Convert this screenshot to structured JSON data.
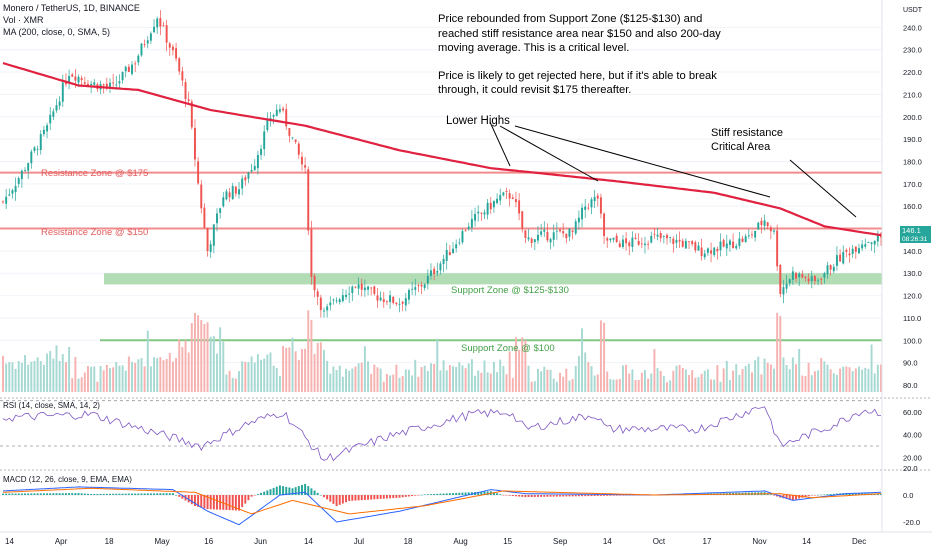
{
  "header": {
    "symbol_line": "Monero / TetherUS, 1D, BINANCE",
    "vol_line": "Vol · XMR",
    "ma_line": "MA (200, close, 0, SMA, 5)"
  },
  "annotations": {
    "note_p1": "Price rebounded from Support Zone ($125-$130) and reached stiff resistance area near $150 and also 200-day moving average. This is a critical level.",
    "note_p2": "Price is likely to get rejected here, but if it's able to break through, it could revisit $175 thereafter.",
    "lower_highs": "Lower Highs",
    "stiff_resistance_1": "Stiff resistance",
    "stiff_resistance_2": "Critical Area"
  },
  "zones": {
    "res175_label": "Resistance Zone @ $175",
    "res150_label": "Resistance Zone @ $150",
    "sup125_label": "Support Zone @ $125-$130",
    "sup100_label": "Support Zone @ $100"
  },
  "panels": {
    "rsi_label": "RSI (14, close, SMA, 14, 2)",
    "macd_label": "MACD (12, 26, close, 9, EMA, EMA)"
  },
  "price_tag": {
    "price": "146.1",
    "countdown": "08:26:31"
  },
  "colors": {
    "up": "#26a69a",
    "down": "#ef5350",
    "ma": "#e0213f",
    "resistance": "#f08c8c",
    "support_zone": "#a5d6a7",
    "support_line": "#81c784",
    "rsi": "#7e57c2",
    "macd": "#2962ff",
    "signal": "#ff6d00"
  },
  "chart_data": [
    {
      "type": "candlestick",
      "x_axis": {
        "ticks": [
          "14",
          "Apr",
          "18",
          "May",
          "16",
          "Jun",
          "14",
          "Jul",
          "18",
          "Aug",
          "15",
          "Sep",
          "14",
          "Oct",
          "17",
          "Nov",
          "14",
          "Dec"
        ]
      },
      "y_axis": {
        "ticks": [
          80.0,
          90.0,
          100.0,
          110.0,
          120.0,
          130.0,
          140.0,
          150.0,
          160.0,
          170.0,
          180.0,
          190.0,
          200.0,
          210.0,
          220.0,
          230.0,
          240.0
        ],
        "unit": "USDT",
        "range": [
          78,
          252
        ]
      },
      "price_keypoints": [
        [
          "2022-03-08",
          162
        ],
        [
          "2022-03-14",
          175
        ],
        [
          "2022-03-22",
          195
        ],
        [
          "2022-03-29",
          220
        ],
        [
          "2022-04-05",
          215
        ],
        [
          "2022-04-12",
          213
        ],
        [
          "2022-04-19",
          225
        ],
        [
          "2022-04-26",
          245
        ],
        [
          "2022-05-02",
          225
        ],
        [
          "2022-05-06",
          205
        ],
        [
          "2022-05-09",
          170
        ],
        [
          "2022-05-12",
          140
        ],
        [
          "2022-05-17",
          165
        ],
        [
          "2022-05-22",
          168
        ],
        [
          "2022-05-27",
          180
        ],
        [
          "2022-06-01",
          200
        ],
        [
          "2022-06-04",
          204
        ],
        [
          "2022-06-08",
          190
        ],
        [
          "2022-06-12",
          175
        ],
        [
          "2022-06-14",
          128
        ],
        [
          "2022-06-18",
          112
        ],
        [
          "2022-06-23",
          120
        ],
        [
          "2022-06-28",
          125
        ],
        [
          "2022-07-04",
          120
        ],
        [
          "2022-07-12",
          117
        ],
        [
          "2022-07-20",
          126
        ],
        [
          "2022-07-28",
          140
        ],
        [
          "2022-08-03",
          152
        ],
        [
          "2022-08-08",
          158
        ],
        [
          "2022-08-13",
          164
        ],
        [
          "2022-08-17",
          165
        ],
        [
          "2022-08-21",
          145
        ],
        [
          "2022-08-27",
          147
        ],
        [
          "2022-09-05",
          148
        ],
        [
          "2022-09-09",
          160
        ],
        [
          "2022-09-13",
          164
        ],
        [
          "2022-09-15",
          145
        ],
        [
          "2022-09-22",
          143
        ],
        [
          "2022-10-01",
          146
        ],
        [
          "2022-10-09",
          144
        ],
        [
          "2022-10-16",
          140
        ],
        [
          "2022-10-23",
          142
        ],
        [
          "2022-10-31",
          146
        ],
        [
          "2022-11-05",
          154
        ],
        [
          "2022-11-08",
          148
        ],
        [
          "2022-11-10",
          122
        ],
        [
          "2022-11-14",
          130
        ],
        [
          "2022-11-21",
          126
        ],
        [
          "2022-11-28",
          136
        ],
        [
          "2022-12-06",
          144
        ],
        [
          "2022-12-12",
          146
        ]
      ],
      "ma200_keypoints": [
        [
          "2022-03-08",
          224
        ],
        [
          "2022-04-01",
          214
        ],
        [
          "2022-04-20",
          212
        ],
        [
          "2022-05-13",
          203
        ],
        [
          "2022-06-12",
          196
        ],
        [
          "2022-07-12",
          185
        ],
        [
          "2022-08-10",
          177
        ],
        [
          "2022-08-24",
          175
        ],
        [
          "2022-09-20",
          171
        ],
        [
          "2022-10-20",
          166
        ],
        [
          "2022-11-10",
          159
        ],
        [
          "2022-11-24",
          151
        ],
        [
          "2022-12-12",
          147
        ]
      ],
      "levels": {
        "resistance_175": 175,
        "resistance_150": 150,
        "support_zone": [
          125,
          130
        ],
        "support_100": 100
      },
      "last_price": 146.1
    },
    {
      "type": "line",
      "name": "RSI",
      "y_axis": {
        "ticks": [
          20.0,
          40.0,
          60.0
        ],
        "range": [
          15,
          75
        ],
        "bands": [
          30,
          70
        ]
      },
      "keypoints": [
        [
          "2022-03-08",
          55
        ],
        [
          "2022-04-05",
          58
        ],
        [
          "2022-05-10",
          30
        ],
        [
          "2022-05-25",
          50
        ],
        [
          "2022-06-05",
          60
        ],
        [
          "2022-06-18",
          18
        ],
        [
          "2022-07-08",
          38
        ],
        [
          "2022-08-04",
          58
        ],
        [
          "2022-08-16",
          60
        ],
        [
          "2022-08-21",
          45
        ],
        [
          "2022-09-12",
          58
        ],
        [
          "2022-09-16",
          45
        ],
        [
          "2022-10-15",
          45
        ],
        [
          "2022-11-05",
          66
        ],
        [
          "2022-11-10",
          30
        ],
        [
          "2022-11-28",
          50
        ],
        [
          "2022-12-06",
          62
        ],
        [
          "2022-12-12",
          60
        ]
      ]
    },
    {
      "type": "bar",
      "name": "MACD",
      "y_axis": {
        "ticks": [
          0.0,
          20.0,
          -20.0
        ],
        "range": [
          -26,
          26
        ]
      },
      "macd_keypoints": [
        [
          "2022-03-08",
          3
        ],
        [
          "2022-04-01",
          6
        ],
        [
          "2022-05-01",
          4
        ],
        [
          "2022-05-12",
          -12
        ],
        [
          "2022-05-22",
          -22
        ],
        [
          "2022-06-04",
          0
        ],
        [
          "2022-06-12",
          2
        ],
        [
          "2022-06-22",
          -20
        ],
        [
          "2022-07-12",
          -12
        ],
        [
          "2022-08-10",
          4
        ],
        [
          "2022-08-21",
          1
        ],
        [
          "2022-10-01",
          0
        ],
        [
          "2022-11-05",
          3
        ],
        [
          "2022-11-14",
          -4
        ],
        [
          "2022-12-01",
          1
        ],
        [
          "2022-12-12",
          2
        ]
      ],
      "signal_keypoints": [
        [
          "2022-03-08",
          2
        ],
        [
          "2022-04-05",
          5
        ],
        [
          "2022-05-08",
          2
        ],
        [
          "2022-05-26",
          -14
        ],
        [
          "2022-06-08",
          -4
        ],
        [
          "2022-06-26",
          -14
        ],
        [
          "2022-07-20",
          -8
        ],
        [
          "2022-08-14",
          3
        ],
        [
          "2022-10-01",
          0
        ],
        [
          "2022-11-10",
          1
        ],
        [
          "2022-11-20",
          -2
        ],
        [
          "2022-12-12",
          1
        ]
      ]
    }
  ]
}
